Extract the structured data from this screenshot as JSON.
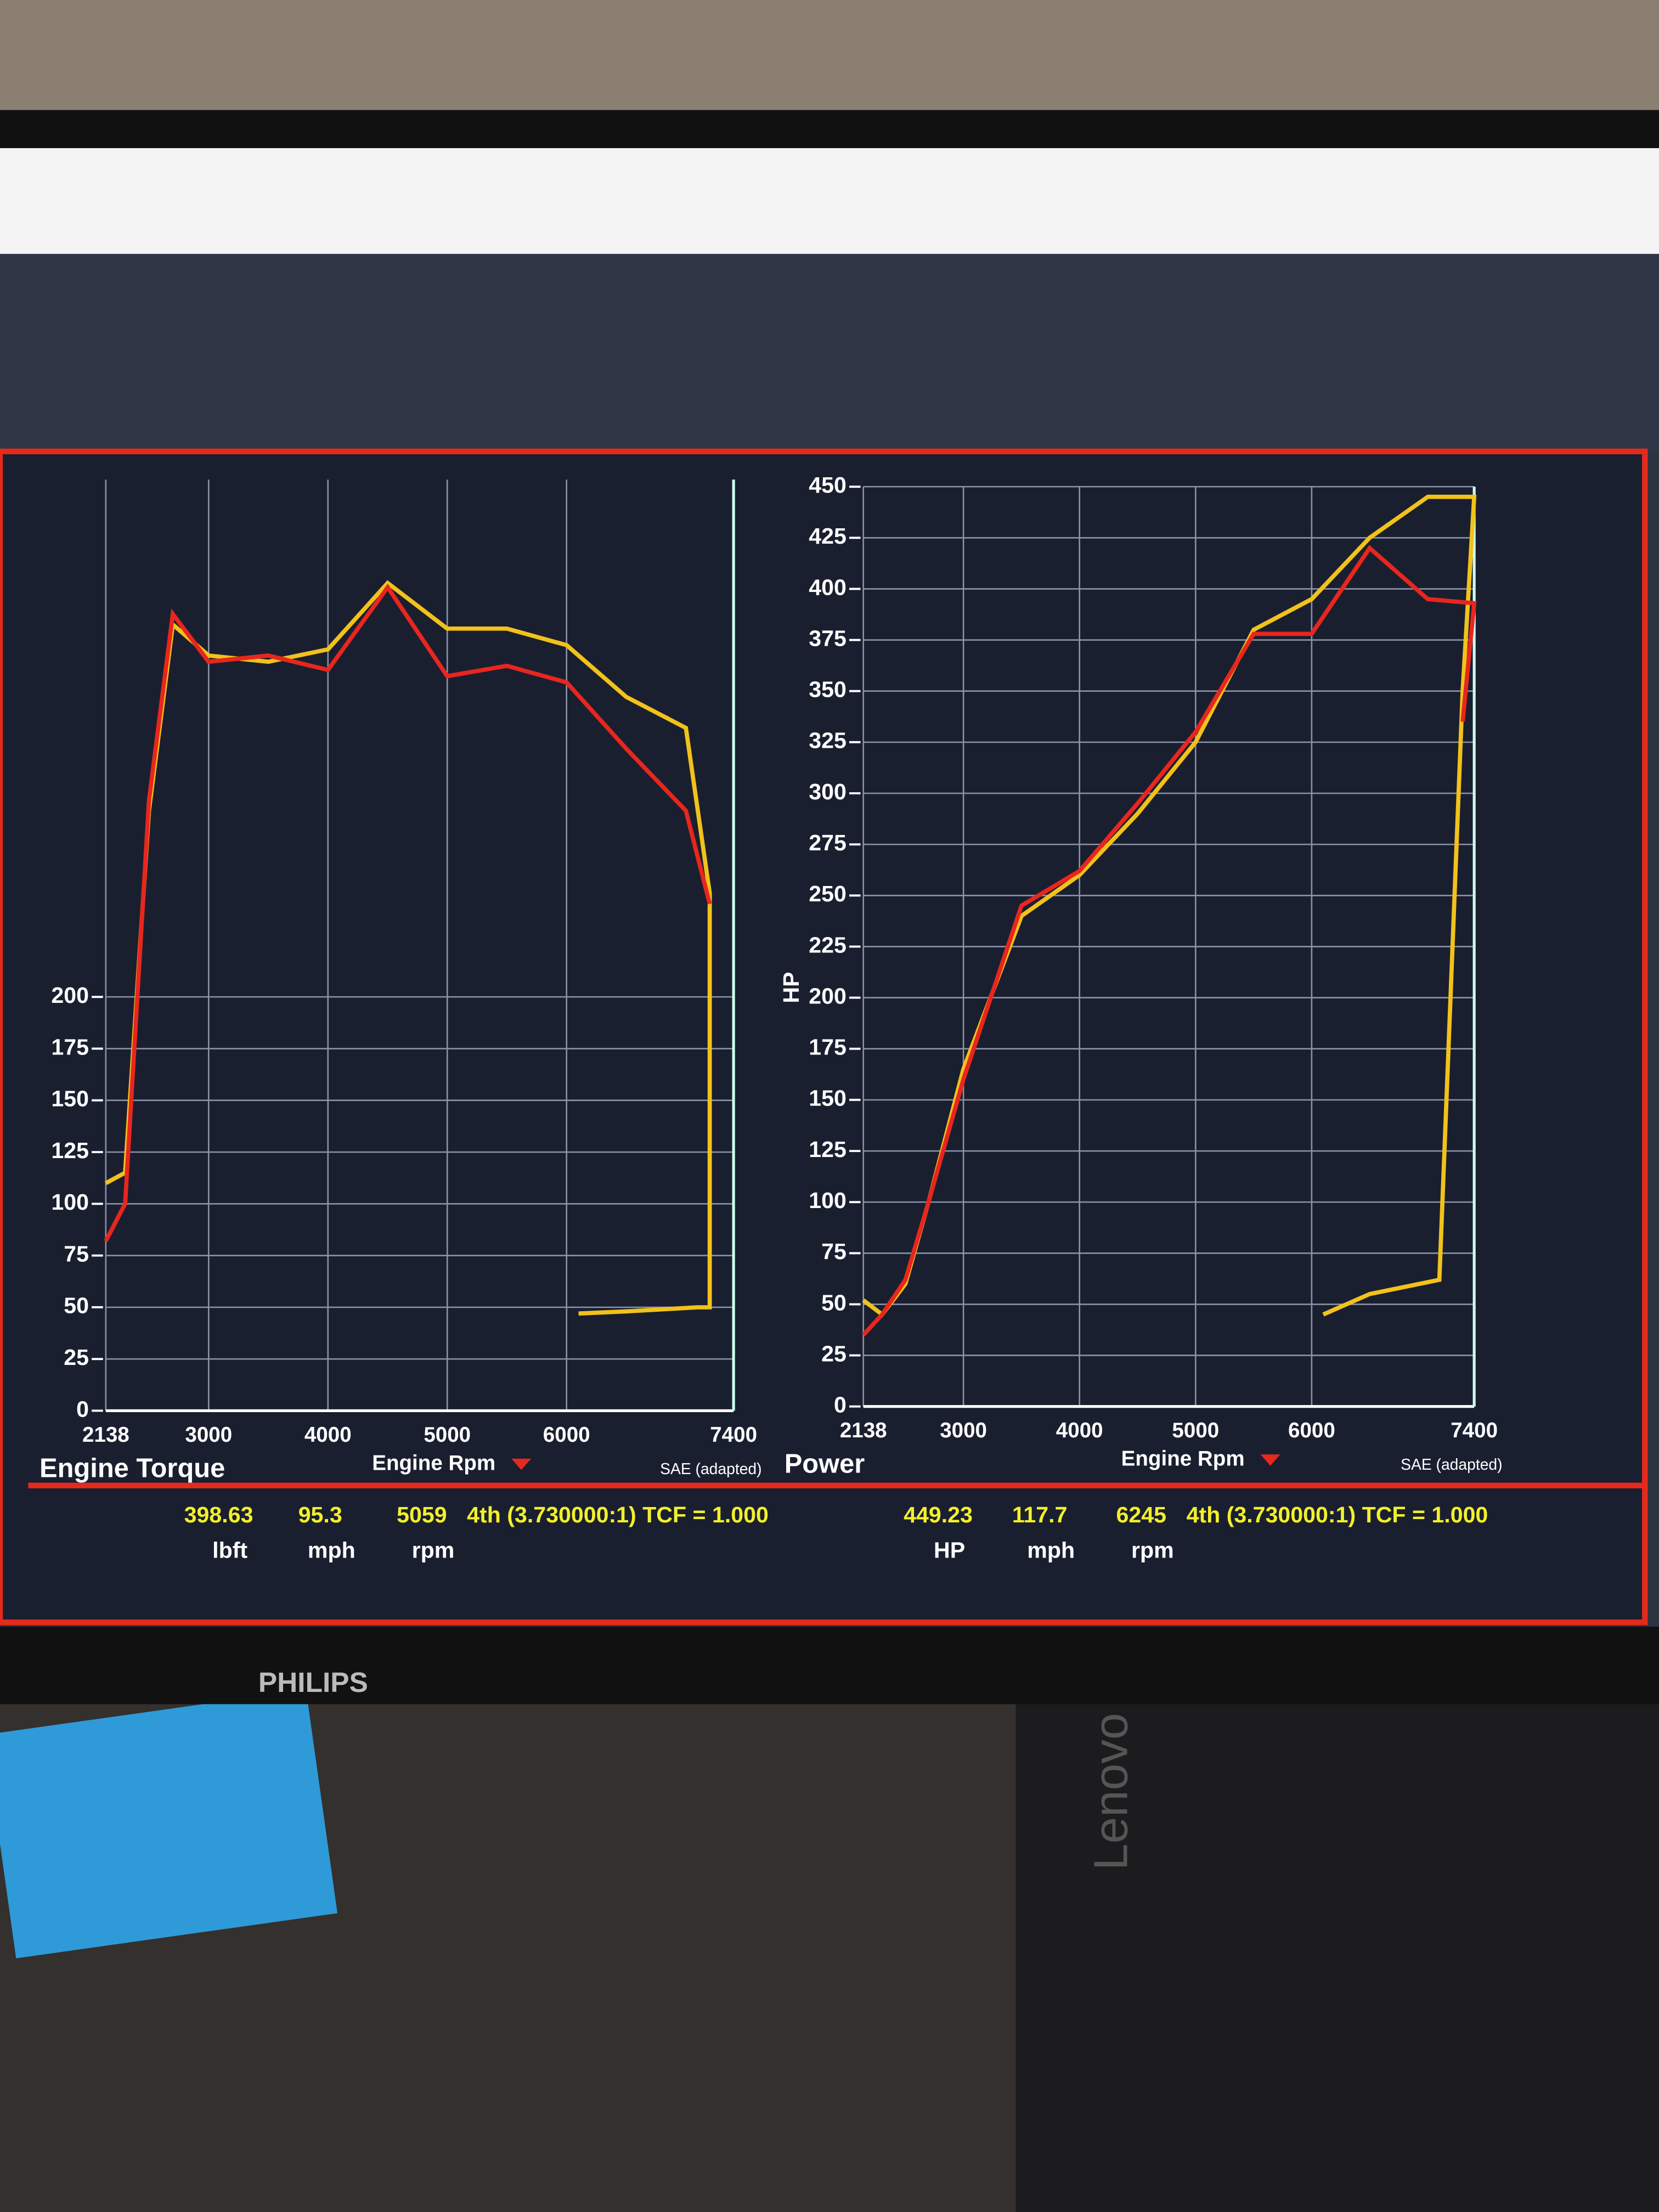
{
  "chart_data": [
    {
      "type": "line",
      "title": "Engine Torque",
      "x_label": "Engine Rpm",
      "note": "SAE (adapted)",
      "x": [
        2138,
        2300,
        2500,
        2700,
        3000,
        3500,
        4000,
        4500,
        5000,
        5500,
        6000,
        6500,
        7000,
        7200,
        7200,
        7100,
        6500,
        6100
      ],
      "series": [
        {
          "color": "#f2c21a",
          "values": [
            110,
            115,
            290,
            380,
            365,
            362,
            368,
            400,
            378,
            378,
            370,
            345,
            330,
            250,
            50,
            50,
            48,
            47
          ]
        },
        {
          "color": "#e8261e",
          "values": [
            82,
            100,
            295,
            385,
            362,
            365,
            358,
            398,
            355,
            360,
            352,
            320,
            290,
            245,
            null,
            null,
            null,
            null
          ]
        }
      ],
      "xlim": [
        2138,
        7400
      ],
      "xticks": [
        2138,
        3000,
        4000,
        5000,
        6000,
        7400
      ],
      "ylim": [
        0,
        450
      ],
      "yticks": [
        0,
        25,
        50,
        75,
        100,
        125,
        150,
        175,
        200
      ],
      "grid": true,
      "readout": {
        "values": [
          "398.63",
          "95.3",
          "5059"
        ],
        "units": [
          "lbft",
          "mph",
          "rpm"
        ],
        "gear": "4th (3.730000:1) TCF = 1.000"
      }
    },
    {
      "type": "line",
      "title": "Power",
      "x_label": "Engine Rpm",
      "y_label": "HP",
      "note": "SAE (adapted)",
      "x": [
        2138,
        2300,
        2500,
        2700,
        3000,
        3500,
        4000,
        4500,
        5000,
        5500,
        6000,
        6500,
        7000,
        7400,
        7300,
        7100,
        6500,
        6100
      ],
      "series": [
        {
          "color": "#f2c21a",
          "values": [
            52,
            45,
            60,
            100,
            165,
            240,
            260,
            290,
            325,
            380,
            395,
            425,
            445,
            445,
            350,
            62,
            55,
            45
          ]
        },
        {
          "color": "#e8261e",
          "values": [
            35,
            45,
            62,
            100,
            160,
            245,
            262,
            295,
            330,
            378,
            378,
            420,
            395,
            393,
            335,
            null,
            null,
            null
          ]
        }
      ],
      "xlim": [
        2138,
        7400
      ],
      "xticks": [
        2138,
        3000,
        4000,
        5000,
        6000,
        7400
      ],
      "ylim": [
        0,
        450
      ],
      "yticks": [
        0,
        25,
        50,
        75,
        100,
        125,
        150,
        175,
        200,
        225,
        250,
        275,
        300,
        325,
        350,
        375,
        400,
        425,
        450
      ],
      "grid": true,
      "readout": {
        "values": [
          "449.23",
          "117.7",
          "6245"
        ],
        "units": [
          "HP",
          "mph",
          "rpm"
        ],
        "gear": "4th (3.730000:1) TCF = 1.000"
      }
    }
  ],
  "scene": {
    "monitor_brand": "PHILIPS",
    "pc_brand": "Lenovo"
  }
}
